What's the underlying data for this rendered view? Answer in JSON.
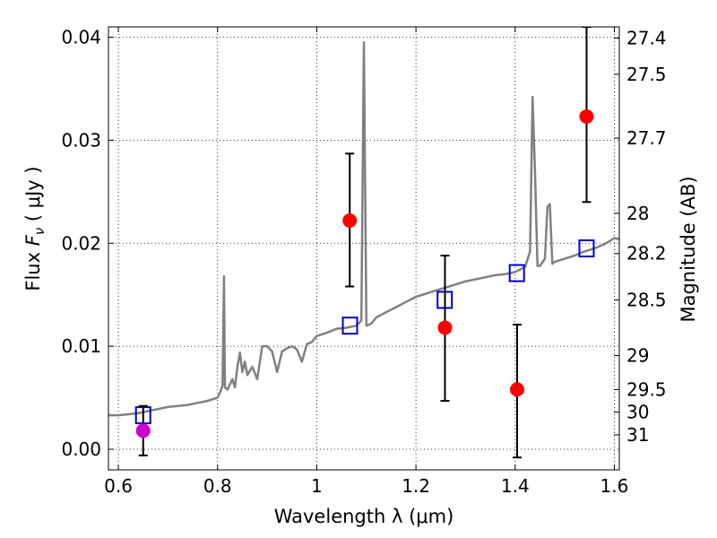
{
  "chart_data": {
    "type": "scatter",
    "xlabel": "Wavelength  λ (μm)",
    "ylabel_parts": {
      "prefix": "Flux  ",
      "var": "F",
      "sub": "ν",
      "unit": "  ( μJy )"
    },
    "y2label": "Magnitude (AB)",
    "xlim": [
      0.58,
      1.61
    ],
    "ylim": [
      -0.002,
      0.041
    ],
    "grid": true,
    "x_ticks": [
      {
        "value": 0.6,
        "label": "0.6"
      },
      {
        "value": 0.8,
        "label": "0.8"
      },
      {
        "value": 1.0,
        "label": "1"
      },
      {
        "value": 1.2,
        "label": "1.2"
      },
      {
        "value": 1.4,
        "label": "1.4"
      },
      {
        "value": 1.6,
        "label": "1.6"
      }
    ],
    "y_ticks": [
      {
        "value": 0.0,
        "label": "0.00"
      },
      {
        "value": 0.01,
        "label": "0.01"
      },
      {
        "value": 0.02,
        "label": "0.02"
      },
      {
        "value": 0.03,
        "label": "0.03"
      },
      {
        "value": 0.04,
        "label": "0.04"
      }
    ],
    "y2_ticks": [
      {
        "flux": 0.0399,
        "label": "27.4"
      },
      {
        "flux": 0.0364,
        "label": "27.5"
      },
      {
        "flux": 0.0302,
        "label": "27.7"
      },
      {
        "flux": 0.0229,
        "label": "28"
      },
      {
        "flux": 0.019,
        "label": "28.2"
      },
      {
        "flux": 0.0145,
        "label": "28.5"
      },
      {
        "flux": 0.0091,
        "label": "29"
      },
      {
        "flux": 0.0058,
        "label": "29.5"
      },
      {
        "flux": 0.0036,
        "label": "30"
      },
      {
        "flux": 0.0014,
        "label": "31"
      }
    ],
    "series": [
      {
        "kind": "line",
        "color": "#808080",
        "points": [
          [
            0.58,
            0.0033
          ],
          [
            0.6,
            0.0033
          ],
          [
            0.62,
            0.0034
          ],
          [
            0.64,
            0.0035
          ],
          [
            0.66,
            0.0037
          ],
          [
            0.68,
            0.0039
          ],
          [
            0.7,
            0.0041
          ],
          [
            0.72,
            0.0042
          ],
          [
            0.74,
            0.0043
          ],
          [
            0.76,
            0.0045
          ],
          [
            0.78,
            0.0047
          ],
          [
            0.8,
            0.005
          ],
          [
            0.805,
            0.0055
          ],
          [
            0.81,
            0.0062
          ],
          [
            0.813,
            0.0168
          ],
          [
            0.815,
            0.006
          ],
          [
            0.82,
            0.0058
          ],
          [
            0.83,
            0.0068
          ],
          [
            0.835,
            0.006
          ],
          [
            0.84,
            0.008
          ],
          [
            0.845,
            0.0094
          ],
          [
            0.85,
            0.0075
          ],
          [
            0.855,
            0.0085
          ],
          [
            0.86,
            0.0072
          ],
          [
            0.87,
            0.008
          ],
          [
            0.88,
            0.0068
          ],
          [
            0.89,
            0.01
          ],
          [
            0.9,
            0.01
          ],
          [
            0.91,
            0.0095
          ],
          [
            0.92,
            0.0075
          ],
          [
            0.93,
            0.0095
          ],
          [
            0.94,
            0.0098
          ],
          [
            0.95,
            0.01
          ],
          [
            0.96,
            0.0097
          ],
          [
            0.97,
            0.0085
          ],
          [
            0.98,
            0.0102
          ],
          [
            0.99,
            0.0104
          ],
          [
            1.0,
            0.011
          ],
          [
            1.02,
            0.0113
          ],
          [
            1.04,
            0.0117
          ],
          [
            1.06,
            0.0118
          ],
          [
            1.08,
            0.012
          ],
          [
            1.09,
            0.0125
          ],
          [
            1.095,
            0.0395
          ],
          [
            1.1,
            0.012
          ],
          [
            1.11,
            0.0122
          ],
          [
            1.12,
            0.0128
          ],
          [
            1.14,
            0.0133
          ],
          [
            1.16,
            0.0138
          ],
          [
            1.18,
            0.0143
          ],
          [
            1.2,
            0.0148
          ],
          [
            1.22,
            0.0151
          ],
          [
            1.24,
            0.0154
          ],
          [
            1.26,
            0.0157
          ],
          [
            1.28,
            0.016
          ],
          [
            1.3,
            0.0163
          ],
          [
            1.32,
            0.0165
          ],
          [
            1.34,
            0.0167
          ],
          [
            1.36,
            0.0169
          ],
          [
            1.38,
            0.017
          ],
          [
            1.4,
            0.0172
          ],
          [
            1.42,
            0.0177
          ],
          [
            1.43,
            0.0192
          ],
          [
            1.435,
            0.0342
          ],
          [
            1.44,
            0.027
          ],
          [
            1.445,
            0.0178
          ],
          [
            1.45,
            0.0178
          ],
          [
            1.46,
            0.0185
          ],
          [
            1.465,
            0.0235
          ],
          [
            1.47,
            0.0238
          ],
          [
            1.475,
            0.018
          ],
          [
            1.48,
            0.0182
          ],
          [
            1.5,
            0.0185
          ],
          [
            1.52,
            0.0188
          ],
          [
            1.54,
            0.0192
          ],
          [
            1.56,
            0.0195
          ],
          [
            1.58,
            0.0199
          ],
          [
            1.6,
            0.0205
          ],
          [
            1.61,
            0.0204
          ]
        ]
      },
      {
        "kind": "squares",
        "color": "#0000cc",
        "points": [
          [
            0.65,
            0.0033
          ],
          [
            1.067,
            0.012
          ],
          [
            1.258,
            0.0145
          ],
          [
            1.4035,
            0.0171
          ],
          [
            1.544,
            0.0195
          ]
        ]
      },
      {
        "kind": "errorbar",
        "color": "#ff0000",
        "points": [
          {
            "x": 0.65,
            "y": 0.0018,
            "lo": -0.0006,
            "hi": 0.0042,
            "color": "#cc00cc"
          },
          {
            "x": 1.0665,
            "y": 0.0222,
            "lo": 0.0158,
            "hi": 0.0287
          },
          {
            "x": 1.2585,
            "y": 0.0118,
            "lo": 0.0047,
            "hi": 0.0188
          },
          {
            "x": 1.404,
            "y": 0.0058,
            "lo": -0.0008,
            "hi": 0.0121
          },
          {
            "x": 1.544,
            "y": 0.0323,
            "lo": 0.024,
            "hi": 0.041
          }
        ]
      }
    ]
  }
}
